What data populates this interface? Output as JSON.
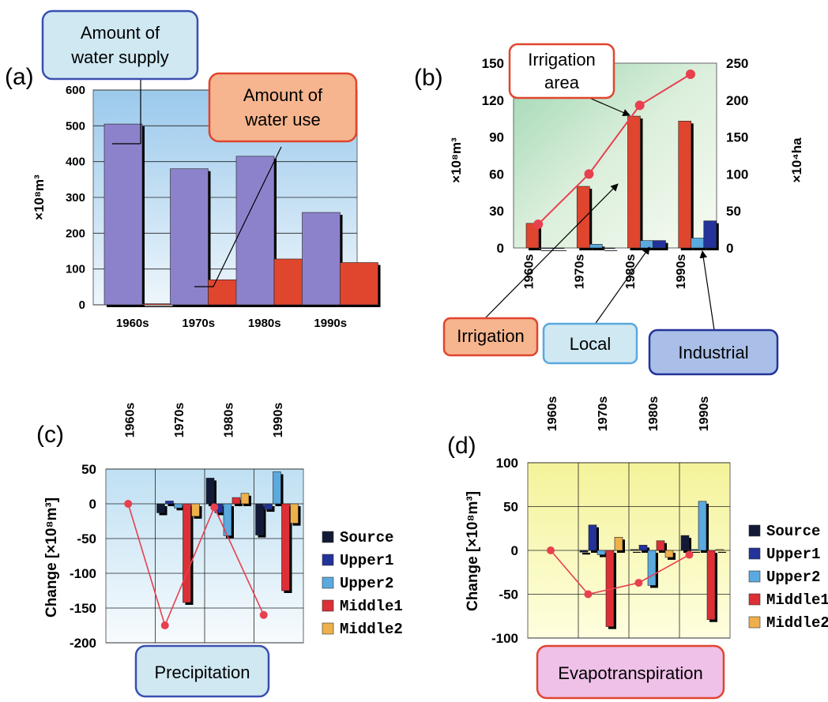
{
  "chart_data": [
    {
      "panel": "(a)",
      "type": "bar",
      "categories": [
        "1960s",
        "1970s",
        "1980s",
        "1990s"
      ],
      "series": [
        {
          "name": "Amount of water supply",
          "values": [
            505,
            380,
            415,
            258
          ]
        },
        {
          "name": "Amount of water use",
          "values": [
            3,
            70,
            128,
            118
          ]
        }
      ],
      "ylabel": "×10⁸m³",
      "ylim": [
        0,
        600
      ],
      "yticks": [
        "0",
        "100",
        "200",
        "300",
        "400",
        "500",
        "600"
      ],
      "grid": true
    },
    {
      "panel": "(b)",
      "type": "bar",
      "categories": [
        "1960s",
        "1970s",
        "1980s",
        "1990s"
      ],
      "series": [
        {
          "name": "Irrigation",
          "values": [
            20,
            50,
            107,
            103
          ]
        },
        {
          "name": "Local",
          "values": [
            0,
            3,
            6,
            8
          ]
        },
        {
          "name": "Industrial",
          "values": [
            0,
            0,
            6,
            22
          ]
        },
        {
          "name": "Irrigation area",
          "type": "line",
          "axis": "right",
          "values": [
            32,
            100,
            193,
            235
          ]
        }
      ],
      "ylabel": "×10⁸m³",
      "ylabel_right": "×10⁴ha",
      "ylim": [
        0,
        150
      ],
      "ylim_right": [
        0,
        250
      ],
      "yticks": [
        "0",
        "30",
        "60",
        "90",
        "120",
        "150"
      ],
      "yticks_right": [
        "0",
        "50",
        "100",
        "150",
        "200",
        "250"
      ],
      "grid": false
    },
    {
      "panel": "(c)",
      "type": "bar",
      "title": "Precipitation",
      "categories": [
        "1960s",
        "1970s",
        "1980s",
        "1990s"
      ],
      "series": [
        {
          "name": "Source",
          "values": [
            0,
            -13,
            37,
            -45
          ]
        },
        {
          "name": "Upper1",
          "values": [
            0,
            4,
            -13,
            -8
          ]
        },
        {
          "name": "Upper2",
          "values": [
            0,
            -6,
            -46,
            46
          ]
        },
        {
          "name": "Middle1",
          "values": [
            0,
            -142,
            9,
            -125
          ]
        },
        {
          "name": "Middle2",
          "values": [
            0,
            -18,
            15,
            -28
          ]
        },
        {
          "type": "line",
          "values": [
            0,
            -175,
            -5,
            -160
          ]
        }
      ],
      "ylabel": "Change [×10⁸m³]",
      "ylim": [
        -200,
        50
      ],
      "yticks": [
        "50",
        "0",
        "-50",
        "-100",
        "-150",
        "-200"
      ],
      "legend": "right",
      "grid": true
    },
    {
      "panel": "(d)",
      "type": "bar",
      "title": "Evapotranspiration",
      "categories": [
        "1960s",
        "1970s",
        "1980s",
        "1990s"
      ],
      "series": [
        {
          "name": "Source",
          "values": [
            0,
            -2,
            1,
            17
          ]
        },
        {
          "name": "Upper1",
          "values": [
            0,
            29,
            6,
            1
          ]
        },
        {
          "name": "Upper2",
          "values": [
            0,
            -5,
            -40,
            56
          ]
        },
        {
          "name": "Middle1",
          "values": [
            0,
            -87,
            11,
            -79
          ]
        },
        {
          "name": "Middle2",
          "values": [
            0,
            15,
            -8,
            1
          ]
        },
        {
          "type": "line",
          "values": [
            0,
            -50,
            -37,
            -5
          ]
        }
      ],
      "ylabel": "Change [×10⁸m³]",
      "ylim": [
        -100,
        100
      ],
      "yticks": [
        "100",
        "50",
        "0",
        "-50",
        "-100"
      ],
      "legend": "right",
      "grid": true
    }
  ],
  "legend": [
    "Source",
    "Upper1",
    "Upper2",
    "Middle1",
    "Middle2"
  ],
  "colors": {
    "supply_bar": "#8c82cc",
    "use_bar": "#e0452e",
    "irrigation_line": "#e8404f",
    "source": "#121a38",
    "upper1": "#23339a",
    "upper2": "#5aa9df",
    "middle1": "#dc2f36",
    "middle2": "#eeb04a",
    "callout_supply_fill": "#cfe8f2",
    "callout_use_fill": "#f6b58e",
    "callout_local_fill": "#cfe8f2",
    "callout_industrial_fill": "#a9bfe8",
    "callout_evap_fill": "#efc0e8"
  },
  "callouts": {
    "supply_1": "Amount of",
    "supply_2": "water supply",
    "use_1": "Amount of",
    "use_2": "water use",
    "irr_area_1": "Irrigation",
    "irr_area_2": "area",
    "irrigation": "Irrigation",
    "local": "Local",
    "industrial": "Industrial",
    "precip": "Precipitation",
    "evap": "Evapotranspiration"
  }
}
